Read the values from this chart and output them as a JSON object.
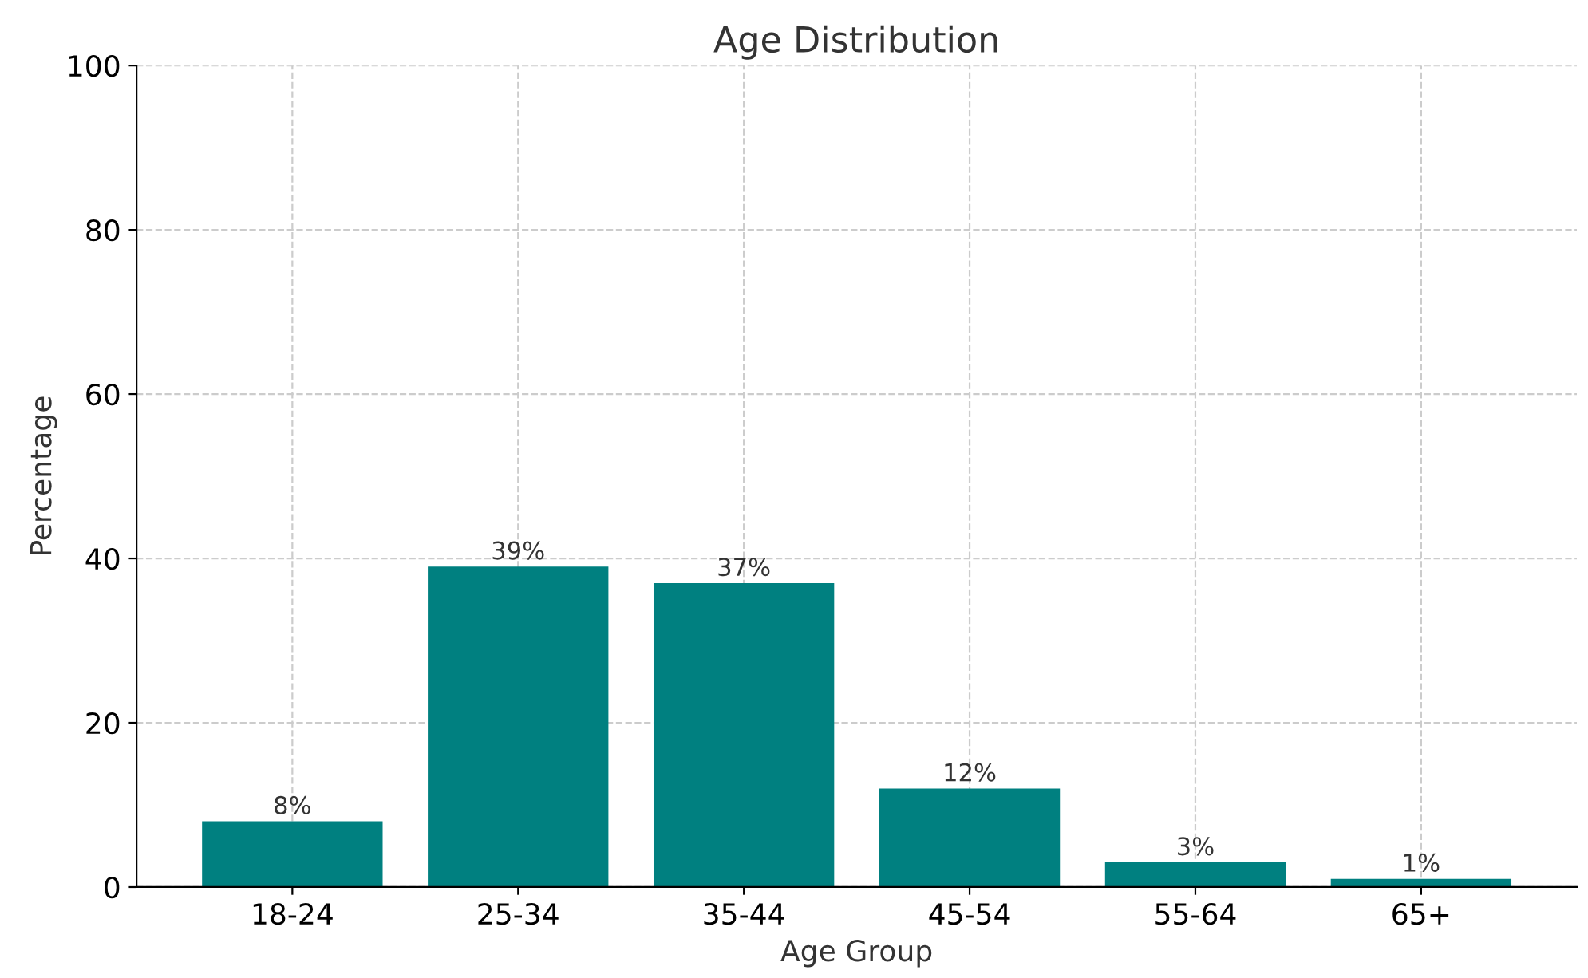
{
  "chart_data": {
    "type": "bar",
    "title": "Age Distribution",
    "xlabel": "Age Group",
    "ylabel": "Percentage",
    "categories": [
      "18-24",
      "25-34",
      "35-44",
      "45-54",
      "55-64",
      "65+"
    ],
    "values": [
      8,
      39,
      37,
      12,
      3,
      1
    ],
    "value_labels": [
      "8%",
      "39%",
      "37%",
      "12%",
      "3%",
      "1%"
    ],
    "color": "#008080",
    "ylim": [
      0,
      100
    ],
    "yticks": [
      0,
      20,
      40,
      60,
      80,
      100
    ],
    "grid": true
  }
}
